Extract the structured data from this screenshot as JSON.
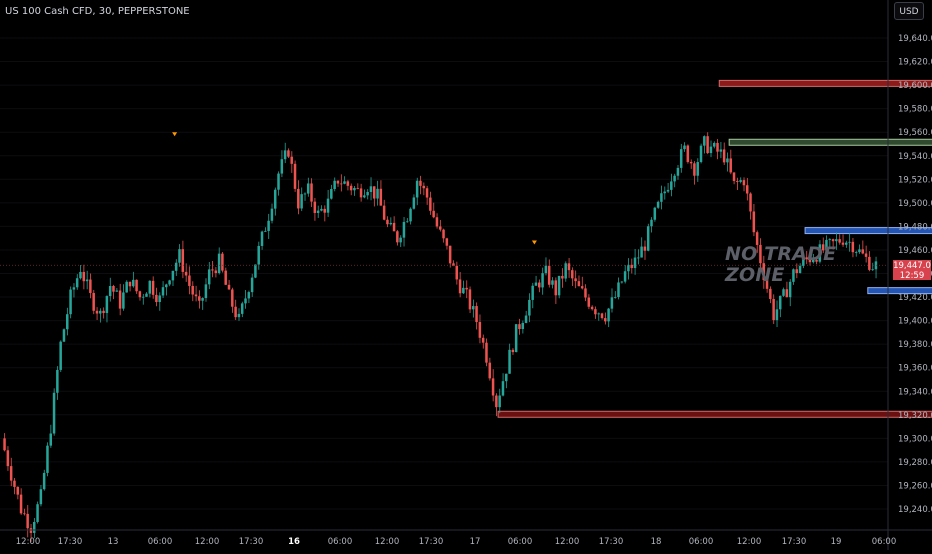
{
  "header": {
    "title": "US 100 Cash CFD, 30, PEPPERSTONE",
    "currency_button": "USD"
  },
  "annotation": {
    "line1": "NO TRADE",
    "line2": "ZONE"
  },
  "price_tag": {
    "price": "19,447.0",
    "countdown": "12:59",
    "color": "#d7424d"
  },
  "chart_data": {
    "type": "candlestick",
    "title": "US 100 Cash CFD, 30, PEPPERSTONE",
    "ylim": [
      19220,
      19660
    ],
    "y_ticks": [
      19240,
      19260,
      19280,
      19300,
      19320,
      19340,
      19360,
      19380,
      19400,
      19420,
      19440,
      19460,
      19480,
      19500,
      19520,
      19540,
      19560,
      19580,
      19600,
      19620,
      19640
    ],
    "y_tick_labels": [
      "19,240.0",
      "19,260.0",
      "19,280.0",
      "19,300.0",
      "19,320.0",
      "19,340.0",
      "19,360.0",
      "19,380.0",
      "19,400.0",
      "19,420.0",
      "19,440.0",
      "19,460.0",
      "19,480.0",
      "19,500.0",
      "19,520.0",
      "19,540.0",
      "19,560.0",
      "19,580.0",
      "19,600.0",
      "19,620.0",
      "19,640.0"
    ],
    "x_tick_labels": [
      "12:00",
      "17:30",
      "13",
      "06:00",
      "12:00",
      "17:30",
      "16",
      "06:00",
      "12:00",
      "17:30",
      "17",
      "06:00",
      "12:00",
      "17:30",
      "18",
      "06:00",
      "12:00",
      "17:30",
      "19",
      "06:00"
    ],
    "x_tick_bold": [
      false,
      false,
      false,
      false,
      false,
      false,
      true,
      false,
      false,
      false,
      false,
      false,
      false,
      false,
      false,
      false,
      false,
      false,
      false,
      false
    ],
    "current_price": 19447.0,
    "up_color": "#26a69a",
    "down_color": "#ef5350",
    "price_path": [
      [
        0,
        19300
      ],
      [
        3,
        19270
      ],
      [
        6,
        19240
      ],
      [
        9,
        19225
      ],
      [
        12,
        19250
      ],
      [
        15,
        19310
      ],
      [
        18,
        19380
      ],
      [
        21,
        19420
      ],
      [
        24,
        19445
      ],
      [
        27,
        19420
      ],
      [
        30,
        19405
      ],
      [
        33,
        19430
      ],
      [
        36,
        19415
      ],
      [
        39,
        19435
      ],
      [
        42,
        19420
      ],
      [
        45,
        19432
      ],
      [
        48,
        19418
      ],
      [
        51,
        19440
      ],
      [
        54,
        19455
      ],
      [
        57,
        19430
      ],
      [
        60,
        19410
      ],
      [
        63,
        19440
      ],
      [
        66,
        19450
      ],
      [
        69,
        19420
      ],
      [
        72,
        19400
      ],
      [
        75,
        19430
      ],
      [
        78,
        19460
      ],
      [
        81,
        19490
      ],
      [
        84,
        19525
      ],
      [
        87,
        19545
      ],
      [
        90,
        19500
      ],
      [
        93,
        19510
      ],
      [
        96,
        19490
      ],
      [
        99,
        19500
      ],
      [
        102,
        19520
      ],
      [
        105,
        19515
      ],
      [
        108,
        19510
      ],
      [
        111,
        19515
      ],
      [
        114,
        19505
      ],
      [
        117,
        19480
      ],
      [
        120,
        19470
      ],
      [
        123,
        19490
      ],
      [
        126,
        19520
      ],
      [
        129,
        19505
      ],
      [
        132,
        19480
      ],
      [
        135,
        19460
      ],
      [
        138,
        19435
      ],
      [
        141,
        19420
      ],
      [
        144,
        19400
      ],
      [
        147,
        19370
      ],
      [
        150,
        19330
      ],
      [
        153,
        19360
      ],
      [
        156,
        19390
      ],
      [
        159,
        19410
      ],
      [
        162,
        19430
      ],
      [
        165,
        19440
      ],
      [
        168,
        19425
      ],
      [
        171,
        19445
      ],
      [
        174,
        19430
      ],
      [
        177,
        19420
      ],
      [
        180,
        19410
      ],
      [
        183,
        19405
      ],
      [
        186,
        19420
      ],
      [
        189,
        19440
      ],
      [
        192,
        19450
      ],
      [
        195,
        19465
      ],
      [
        198,
        19490
      ],
      [
        201,
        19510
      ],
      [
        204,
        19530
      ],
      [
        207,
        19545
      ],
      [
        210,
        19530
      ],
      [
        213,
        19550
      ],
      [
        216,
        19545
      ],
      [
        219,
        19540
      ],
      [
        222,
        19515
      ],
      [
        225,
        19520
      ],
      [
        228,
        19475
      ],
      [
        231,
        19440
      ],
      [
        234,
        19405
      ],
      [
        237,
        19420
      ],
      [
        240,
        19440
      ],
      [
        243,
        19450
      ],
      [
        246,
        19455
      ],
      [
        249,
        19460
      ],
      [
        252,
        19465
      ],
      [
        255,
        19470
      ],
      [
        258,
        19465
      ],
      [
        261,
        19455
      ],
      [
        264,
        19447
      ]
    ],
    "zones": [
      {
        "name": "zone-red-top",
        "y1": 19600,
        "y2": 19604,
        "x1": 217,
        "x2": 300,
        "color": "#8b1a1a",
        "border": "#d36a6a"
      },
      {
        "name": "zone-green",
        "y1": 19550,
        "y2": 19554,
        "x1": 220,
        "x2": 300,
        "color": "#2f4a2f",
        "border": "#a9c9a0"
      },
      {
        "name": "zone-blue-upper",
        "y1": 19475,
        "y2": 19479,
        "x1": 243,
        "x2": 298,
        "color": "#2455b3",
        "border": "#8fb0ef"
      },
      {
        "name": "zone-blue-lower",
        "y1": 19424,
        "y2": 19428,
        "x1": 262,
        "x2": 298,
        "color": "#2455b3",
        "border": "#8fb0ef"
      },
      {
        "name": "zone-red-bottom",
        "y1": 19319,
        "y2": 19323,
        "x1": 150,
        "x2": 303,
        "color": "#6b1010",
        "border": "#d36a6a"
      }
    ]
  }
}
